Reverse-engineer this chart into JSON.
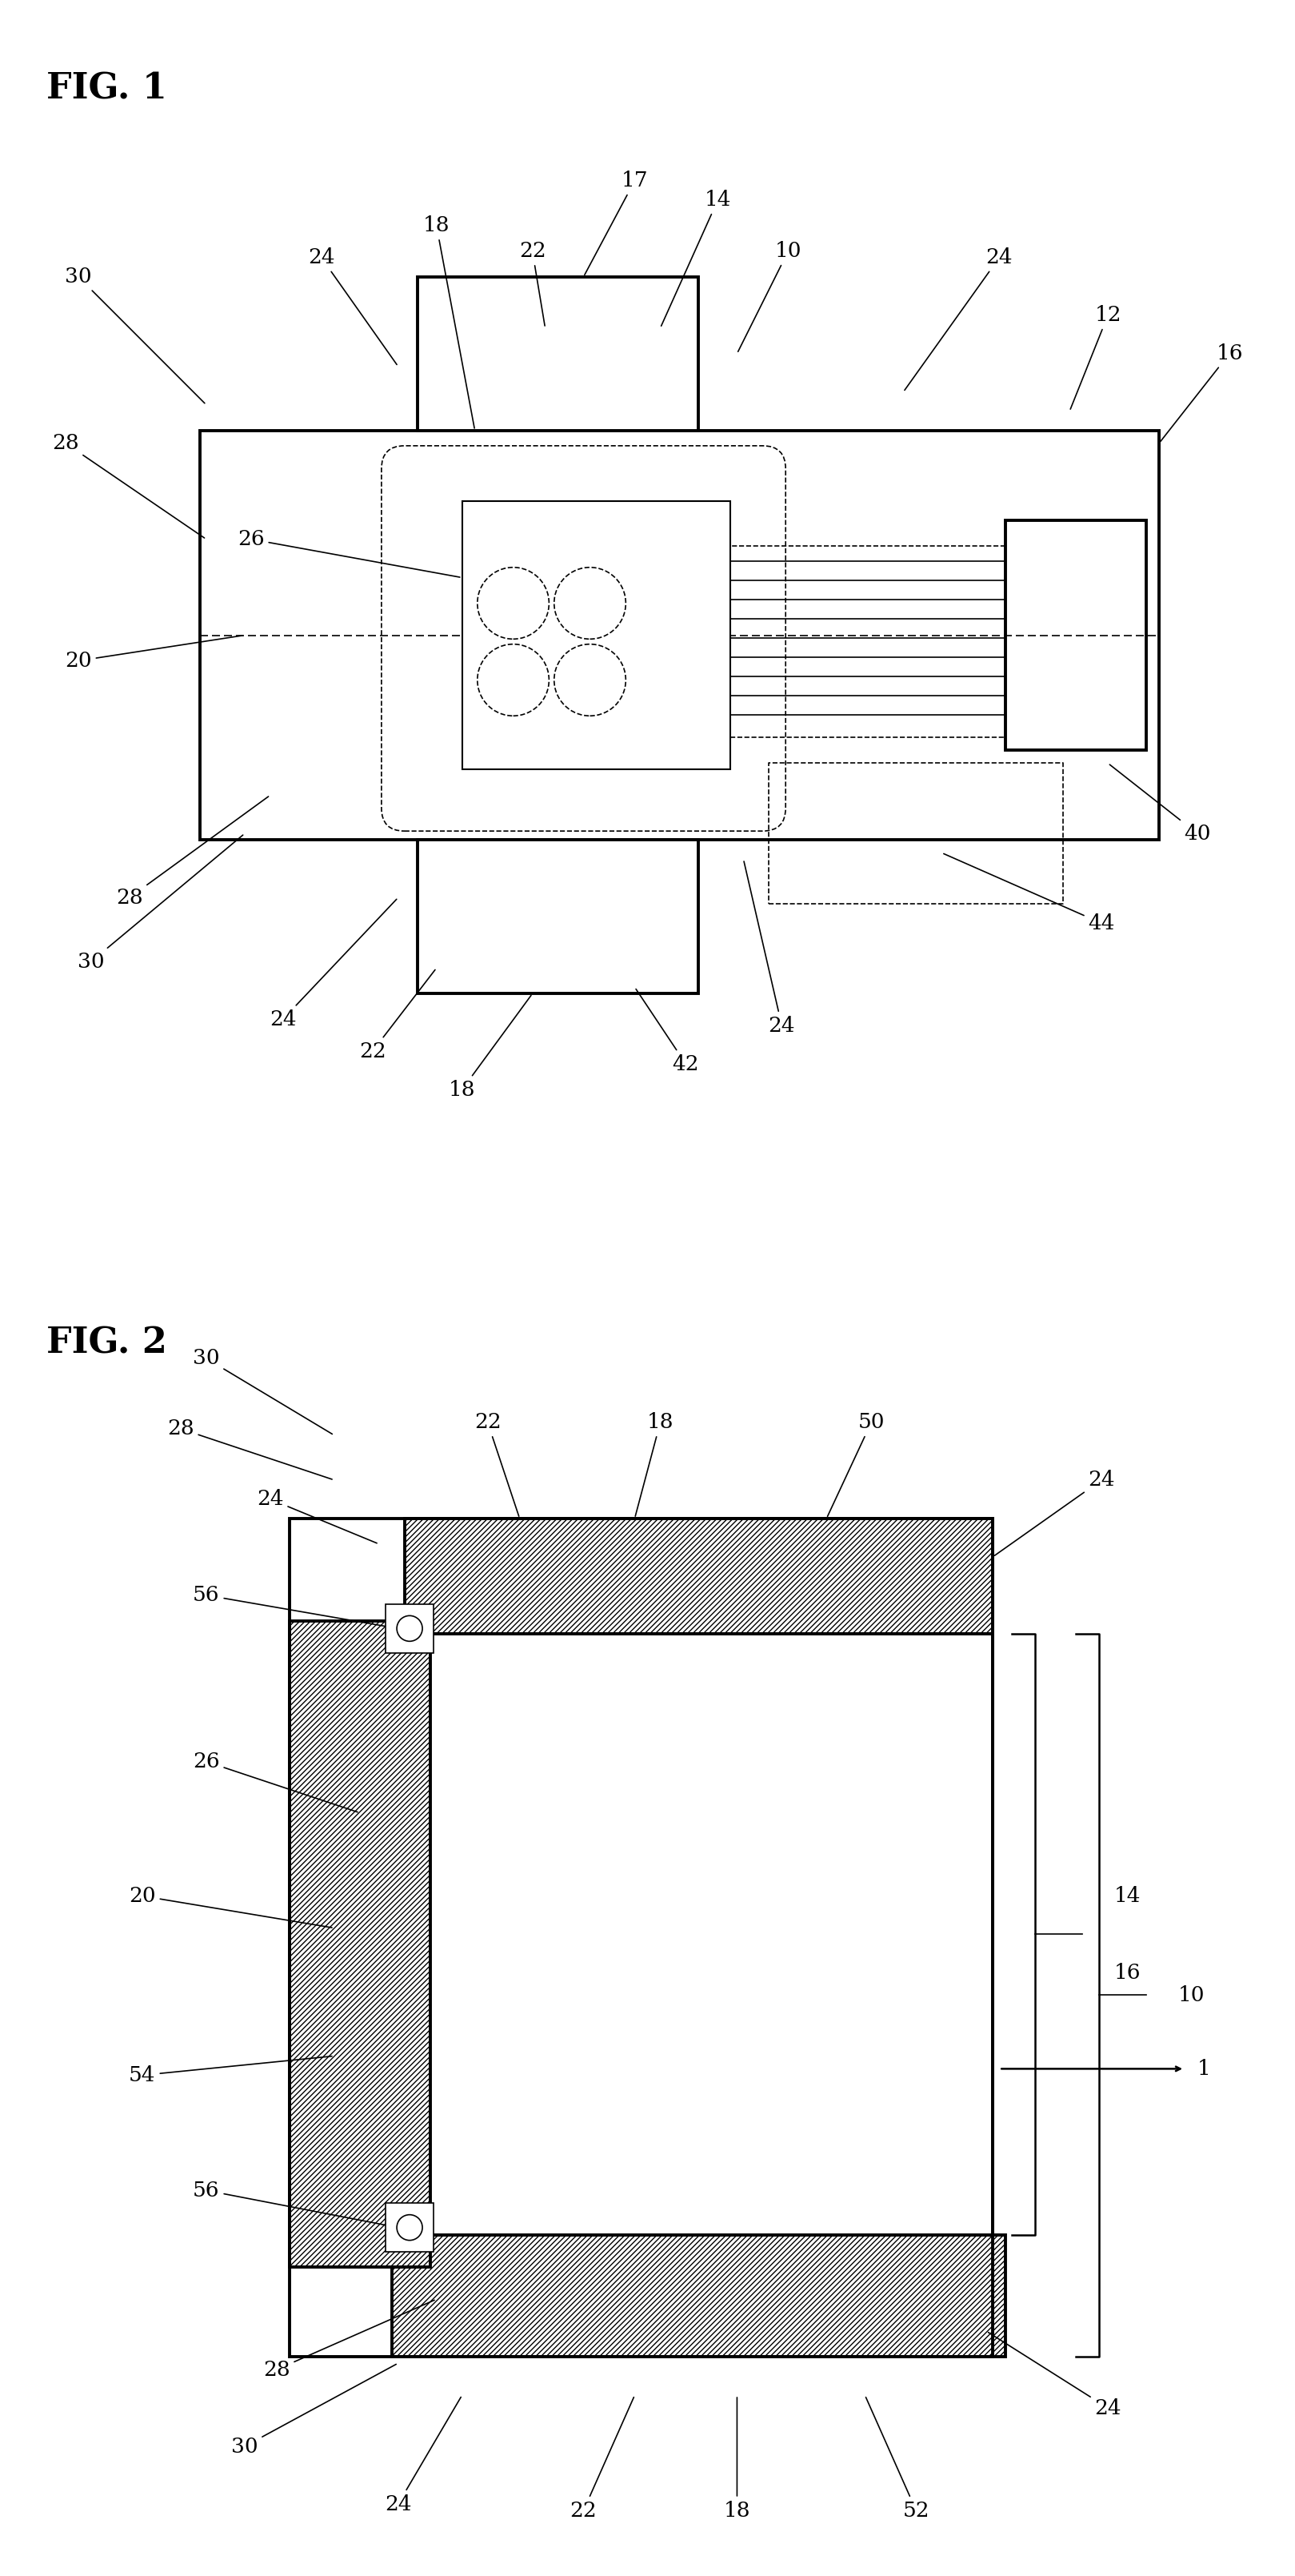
{
  "fig1_title": "FIG. 1",
  "fig2_title": "FIG. 2",
  "bg_color": "#ffffff",
  "line_color": "#000000",
  "lw_thin": 1.2,
  "lw_thick": 2.8,
  "lw_medium": 1.8
}
